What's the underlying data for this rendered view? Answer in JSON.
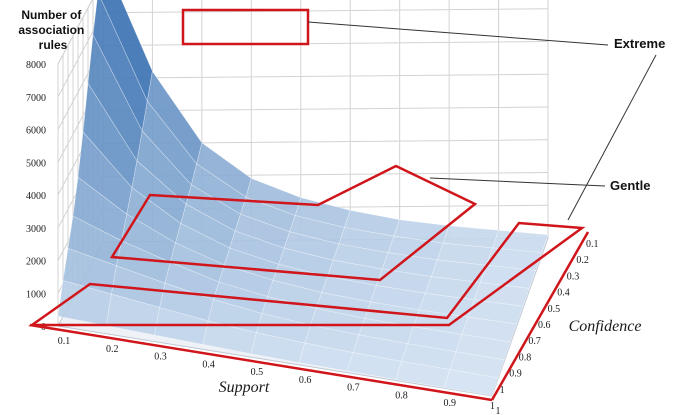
{
  "chart_data": {
    "type": "surface",
    "zlabel_lines": [
      "Number of",
      "association",
      "rules"
    ],
    "xlabel": "Support",
    "ylabel": "Confidence",
    "z_ticks": [
      "0",
      "1000",
      "2000",
      "3000",
      "4000",
      "5000",
      "6000",
      "7000",
      "8000"
    ],
    "x_ticks": [
      "0.1",
      "0.2",
      "0.3",
      "0.4",
      "0.5",
      "0.6",
      "0.7",
      "0.8",
      "0.9",
      "1"
    ],
    "y_ticks": [
      "0.1",
      "0.2",
      "0.3",
      "0.4",
      "0.5",
      "0.6",
      "0.7",
      "0.8",
      "0.9",
      "1",
      "1"
    ],
    "zlim": [
      0,
      8000
    ],
    "support": [
      0.1,
      0.2,
      0.3,
      0.4,
      0.5,
      0.6,
      0.7,
      0.8,
      0.9,
      1.0
    ],
    "confidence": [
      0.1,
      0.2,
      0.3,
      0.4,
      0.5,
      0.6,
      0.7,
      0.8,
      0.9,
      1.0
    ],
    "rules_by_confidence": [
      [
        8700,
        5200,
        3000,
        1900,
        1300,
        900,
        600,
        400,
        250,
        100
      ],
      [
        7900,
        4600,
        2700,
        1700,
        1150,
        800,
        550,
        350,
        220,
        90
      ],
      [
        6900,
        4000,
        2400,
        1550,
        1050,
        720,
        500,
        320,
        200,
        80
      ],
      [
        5700,
        3400,
        2150,
        1400,
        950,
        650,
        450,
        290,
        180,
        70
      ],
      [
        4500,
        2900,
        1900,
        1250,
        850,
        580,
        400,
        260,
        160,
        60
      ],
      [
        3400,
        2400,
        1650,
        1100,
        760,
        510,
        350,
        230,
        140,
        50
      ],
      [
        2500,
        1900,
        1400,
        950,
        660,
        450,
        300,
        200,
        120,
        40
      ],
      [
        1800,
        1450,
        1100,
        780,
        540,
        370,
        250,
        160,
        100,
        30
      ],
      [
        1100,
        900,
        700,
        500,
        350,
        240,
        160,
        100,
        60,
        20
      ],
      [
        300,
        250,
        200,
        150,
        100,
        70,
        50,
        30,
        20,
        10
      ]
    ],
    "annotations": [
      "Extreme",
      "Gentle"
    ],
    "highlight_color": "#d0151b",
    "surface_colors": {
      "high": "#1f5fa6",
      "mid": "#6fa8de",
      "low": "#c6d8ec"
    }
  }
}
